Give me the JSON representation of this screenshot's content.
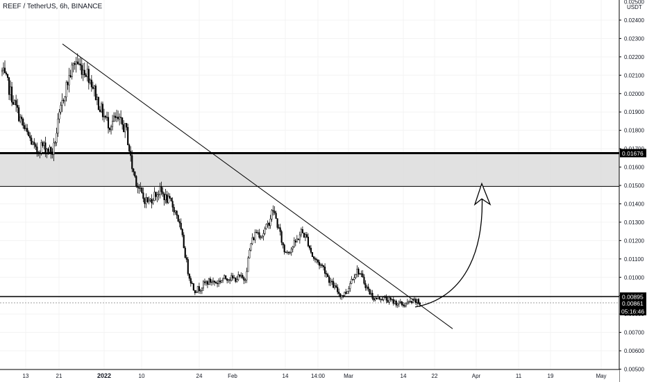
{
  "header": {
    "title": "REEF / TetherUS, 6h, BINANCE",
    "currency": "USDT"
  },
  "chart_data": {
    "type": "candlestick",
    "title": "REEF / TetherUS, 6h, BINANCE",
    "y_unit": "USDT",
    "ylim": [
      0.005,
      0.025
    ],
    "y_ticks": [
      "0.02400",
      "0.02300",
      "0.02200",
      "0.02100",
      "0.02000",
      "0.01900",
      "0.01800",
      "0.01700",
      "0.01600",
      "0.01500",
      "0.01400",
      "0.01300",
      "0.01200",
      "0.01100",
      "0.01000",
      "0.00900",
      "0.00800",
      "0.00700",
      "0.00600",
      "0.00500"
    ],
    "y_tick_values": [
      0.024,
      0.023,
      0.022,
      0.021,
      0.02,
      0.019,
      0.018,
      0.017,
      0.016,
      0.015,
      0.014,
      0.013,
      0.012,
      0.011,
      0.01,
      0.009,
      0.008,
      0.007,
      0.006,
      0.005
    ],
    "top_tick_partial": "0.02500",
    "x_ticks": [
      "13",
      "21",
      "2022",
      "10",
      "24",
      "Feb",
      "14",
      "14:00",
      "Mar",
      "14",
      "22",
      "Apr",
      "11",
      "19",
      "May"
    ],
    "price_labels": {
      "resistance_top": "0.01676",
      "support": "0.00895",
      "last_price": "0.00861",
      "countdown": "05:16:46"
    },
    "levels": {
      "zone_top": 0.01676,
      "zone_bottom": 0.01495,
      "support": 0.00895,
      "last_price": 0.00861
    },
    "price_path": [
      0.0212,
      0.0205,
      0.0196,
      0.0188,
      0.018,
      0.0175,
      0.0168,
      0.0172,
      0.017,
      0.0168,
      0.0185,
      0.02,
      0.021,
      0.0218,
      0.0214,
      0.0212,
      0.0205,
      0.0195,
      0.0188,
      0.0183,
      0.0186,
      0.0184,
      0.018,
      0.016,
      0.015,
      0.0143,
      0.0141,
      0.0145,
      0.0147,
      0.0143,
      0.014,
      0.0134,
      0.012,
      0.0102,
      0.0093,
      0.0094,
      0.0097,
      0.0098,
      0.0097,
      0.0099,
      0.01,
      0.0099,
      0.01,
      0.0099,
      0.0118,
      0.0125,
      0.0123,
      0.0128,
      0.0137,
      0.0126,
      0.0114,
      0.0115,
      0.0119,
      0.0125,
      0.0121,
      0.0111,
      0.0108,
      0.0105,
      0.0098,
      0.0094,
      0.009,
      0.0092,
      0.01,
      0.0104,
      0.0098,
      0.0092,
      0.0088,
      0.0089,
      0.0088,
      0.0087,
      0.0086,
      0.0085,
      0.0086,
      0.0087,
      0.0086
    ],
    "trendline": {
      "start": 0.0227,
      "end": 0.0072
    },
    "projection": "upward curved arrow toward 0.01500"
  }
}
